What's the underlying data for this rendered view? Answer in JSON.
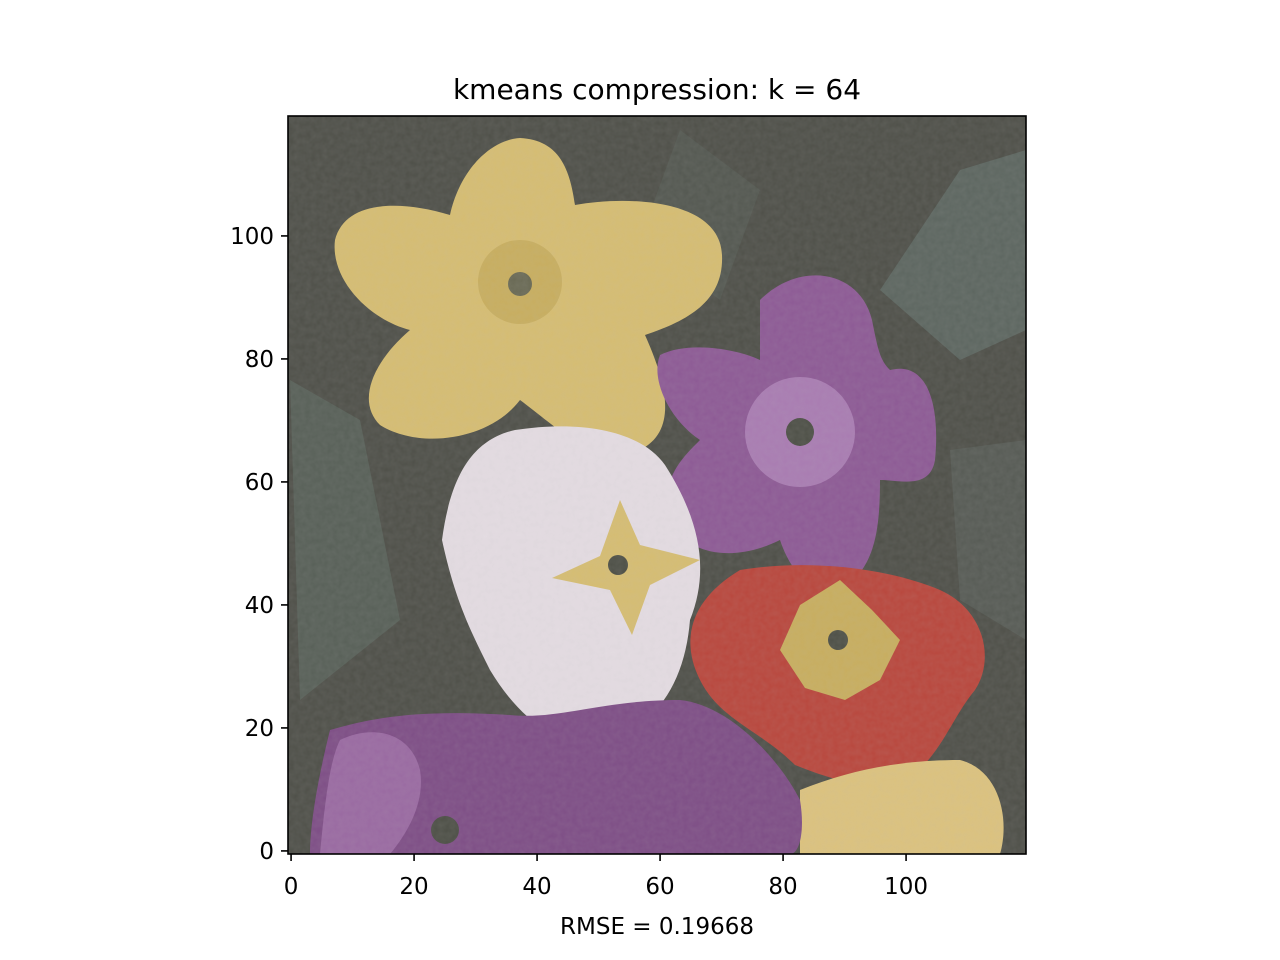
{
  "chart_data": {
    "type": "image",
    "title": "kmeans compression: k = 64",
    "xlabel": "RMSE = 0.19668",
    "ylabel": "",
    "image_size": [
      120,
      120
    ],
    "xlim": [
      -0.5,
      119.5
    ],
    "ylim": [
      119.5,
      -0.5
    ],
    "xticks": [
      0,
      20,
      40,
      60,
      80,
      100
    ],
    "yticks": [
      0,
      20,
      40,
      60,
      80,
      100
    ],
    "grid": false,
    "legend": "none",
    "colors": {
      "background_foliage": "#4f5049",
      "foliage_gray_green": "#5d6660",
      "yellow_flower": "#d6bd72",
      "yellow_center": "#c8ae5f",
      "violet_flower": "#8d5a95",
      "violet_light": "#a97cb2",
      "white_flower": "#e4dce2",
      "red_flower": "#b9473d",
      "flower_center": "#4e5047"
    }
  }
}
